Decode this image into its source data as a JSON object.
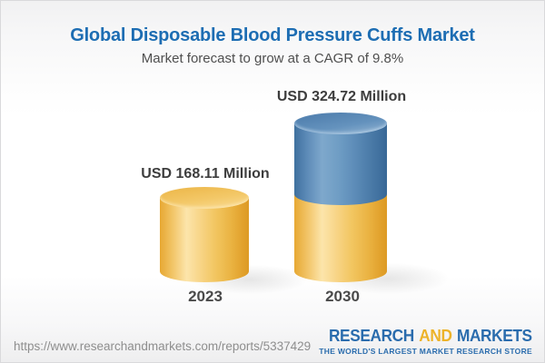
{
  "header": {
    "title": "Global Disposable Blood Pressure Cuffs Market",
    "subtitle": "Market forecast to grow at a CAGR of 9.8%"
  },
  "chart_data": {
    "type": "bar",
    "variant": "3d-cylinder",
    "title": "Global Disposable Blood Pressure Cuffs Market",
    "subtitle": "Market forecast to grow at a CAGR of 9.8%",
    "unit": "USD Million",
    "cagr_percent": 9.8,
    "categories": [
      "2023",
      "2030"
    ],
    "values": [
      168.11,
      324.72
    ],
    "value_labels": [
      "USD 168.11 Million",
      "USD 324.72 Million"
    ],
    "series_note": "2030 cylinder is stacked: yellow base equals 2023 value, blue top is growth",
    "colors": {
      "base_segment": "#f2c661",
      "growth_segment": "#5e8db9",
      "label_text": "#3d3d3d"
    },
    "legend": null,
    "gridlines": false,
    "axes_shown": false
  },
  "footer": {
    "url": "https://www.researchandmarkets.com/reports/5337429",
    "logo": {
      "word1": "RESEARCH",
      "word2": "AND",
      "word3": "MARKETS",
      "tagline": "THE WORLD'S LARGEST MARKET RESEARCH STORE",
      "color_blue": "#2a6cad",
      "color_gold": "#edb32a"
    }
  },
  "colors": {
    "title_blue": "#1d6db3",
    "subtitle_gray": "#4f4f4f",
    "background_top": "#f1f1f2",
    "background_bottom": "#eeeeef"
  }
}
